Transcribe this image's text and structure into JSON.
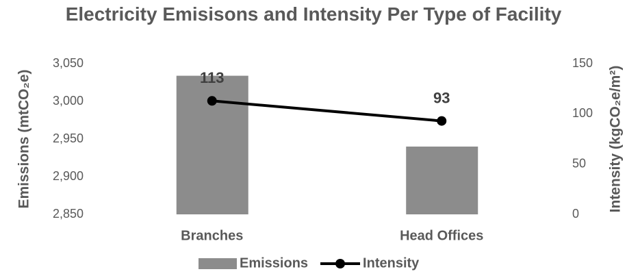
{
  "chart_data": {
    "type": "bar",
    "title": "Electricity Emisisons and Intensity Per Type of Facility",
    "ylabel": "Emissions (mtCO₂e)",
    "y2label": "Intensity (kgCO₂e/m²)",
    "categories": [
      "Branches",
      "Head Offices"
    ],
    "series": [
      {
        "name": "Emissions",
        "type": "bar",
        "color": "#8c8c8c",
        "values": [
          3034,
          2940
        ]
      },
      {
        "name": "Intensity",
        "type": "line",
        "axis": "y2",
        "color": "#000000",
        "values": [
          113,
          93
        ]
      }
    ],
    "ylim": [
      2850,
      3050
    ],
    "yticks": [
      {
        "value": 2850,
        "label": "2,850"
      },
      {
        "value": 2900,
        "label": "2,900"
      },
      {
        "value": 2950,
        "label": "2,950"
      },
      {
        "value": 3000,
        "label": "3,000"
      },
      {
        "value": 3050,
        "label": "3,050"
      }
    ],
    "y2lim": [
      0,
      150
    ],
    "y2ticks": [
      0,
      50,
      100,
      150
    ],
    "grid": false,
    "legend": "bottom"
  }
}
